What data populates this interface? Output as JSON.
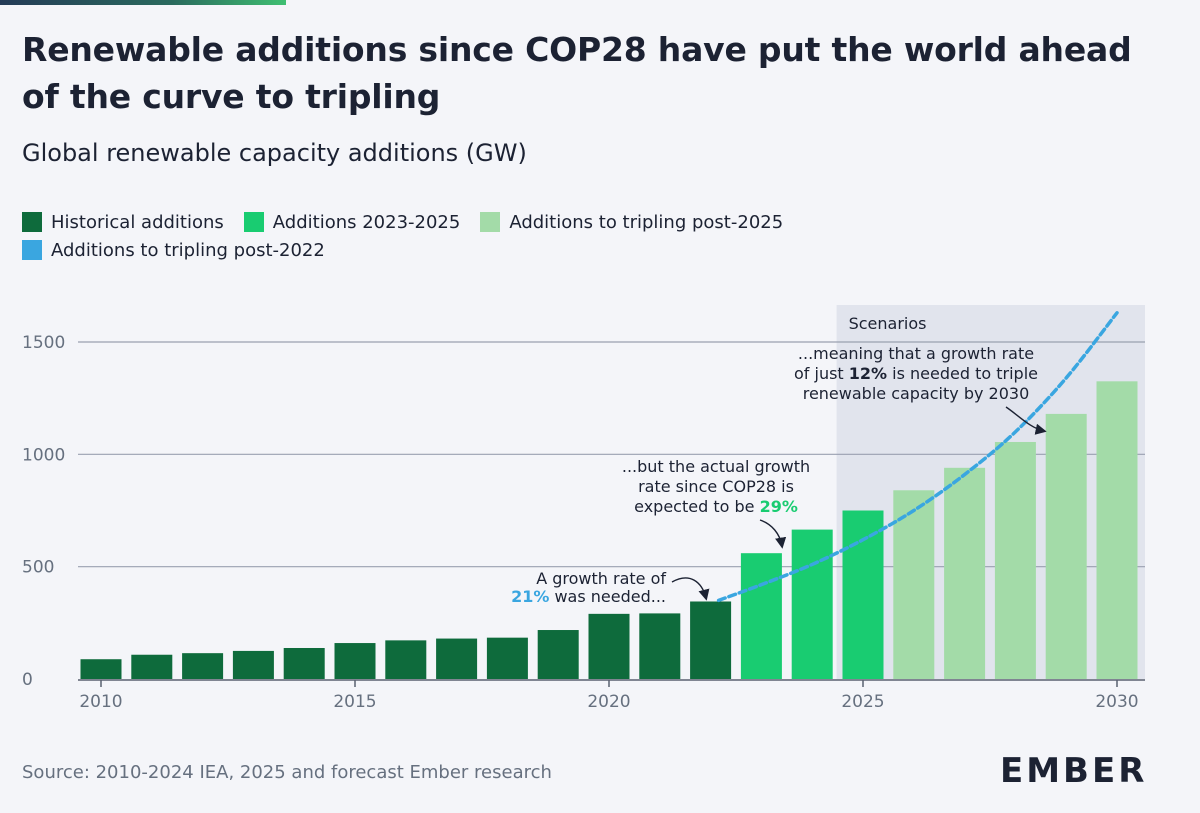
{
  "header": {
    "title": "Renewable additions since COP28 have put the world ahead of the curve to tripling",
    "subtitle": "Global renewable capacity additions (GW)"
  },
  "legend": {
    "historical": "Historical additions",
    "additions_2023_2025": "Additions 2023-2025",
    "tripling_post_2025": "Additions to tripling post-2025",
    "tripling_post_2022": "Additions to tripling post-2022"
  },
  "colors": {
    "historical": "#0e6b3c",
    "additions_2023_2025": "#19cc71",
    "tripling_post_2025": "#a3dba8",
    "tripling_post_2022": "#3aa6e0",
    "scenario_band": "#e1e4ed"
  },
  "chart_data": {
    "type": "bar",
    "title": "Global renewable capacity additions (GW)",
    "ylim": [
      0,
      1650
    ],
    "yticks": [
      0,
      500,
      1000,
      1500
    ],
    "ytick_labels": [
      "0",
      "500",
      "1000",
      "1500"
    ],
    "xticks": [
      2010,
      2015,
      2020,
      2025,
      2030
    ],
    "xtick_labels": [
      "2010",
      "2015",
      "2020",
      "2025",
      "2030"
    ],
    "grid": true,
    "scenario_label": "Scenarios",
    "scenario_start_year": 2024.5,
    "series": [
      {
        "name": "Historical additions",
        "key": "historical",
        "x": [
          2010,
          2011,
          2012,
          2013,
          2014,
          2015,
          2016,
          2017,
          2018,
          2019,
          2020,
          2021,
          2022
        ],
        "values": [
          88,
          108,
          115,
          125,
          138,
          160,
          172,
          180,
          184,
          218,
          290,
          292,
          345
        ]
      },
      {
        "name": "Additions 2023-2025",
        "key": "additions_2023_2025",
        "x": [
          2023,
          2024,
          2025
        ],
        "values": [
          560,
          665,
          750
        ]
      },
      {
        "name": "Additions to tripling post-2025",
        "key": "tripling_post_2025",
        "x": [
          2026,
          2027,
          2028,
          2029,
          2030
        ],
        "values": [
          840,
          940,
          1055,
          1180,
          1325
        ]
      }
    ],
    "line": {
      "name": "Additions to tripling post-2022",
      "key": "tripling_post_2022",
      "x": [
        2022,
        2023,
        2024,
        2025,
        2026,
        2027,
        2028,
        2029,
        2030
      ],
      "values": [
        350,
        420,
        510,
        620,
        750,
        910,
        1100,
        1340,
        1630
      ]
    },
    "annotations": [
      {
        "key": "a1",
        "lines": [
          [
            {
              "t": "A growth rate of"
            }
          ],
          [
            {
              "t": "21%",
              "c": "#3aa6e0",
              "b": true
            },
            {
              "t": " was needed..."
            }
          ]
        ]
      },
      {
        "key": "a2",
        "lines": [
          [
            {
              "t": "...but the actual growth"
            }
          ],
          [
            {
              "t": "rate since COP28 is"
            }
          ],
          [
            {
              "t": "expected to be "
            },
            {
              "t": "29%",
              "c": "#19cc71",
              "b": true
            }
          ]
        ]
      },
      {
        "key": "a3",
        "lines": [
          [
            {
              "t": "...meaning that a growth rate"
            }
          ],
          [
            {
              "t": "of just "
            },
            {
              "t": "12%",
              "b": true
            },
            {
              "t": " is needed to triple"
            }
          ],
          [
            {
              "t": "renewable capacity by 2030"
            }
          ]
        ]
      }
    ]
  },
  "footer": {
    "source": "Source: 2010-2024 IEA, 2025 and forecast Ember research",
    "logo": "EMBER"
  }
}
